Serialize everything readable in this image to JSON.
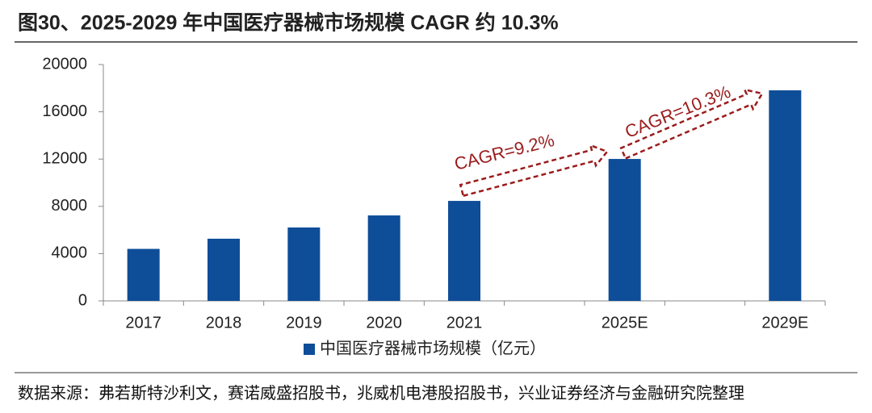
{
  "chart_data": {
    "type": "bar",
    "title": "图30、2025-2029 年中国医疗器械市场规模 CAGR 约 10.3%",
    "categories": [
      "2017",
      "2018",
      "2019",
      "2020",
      "2021",
      null,
      "2025E",
      null,
      "2029E"
    ],
    "series": [
      {
        "name": "中国医疗器械市场规模（亿元）",
        "color": "#0e4d98",
        "values": [
          4400,
          5260,
          6210,
          7230,
          8460,
          null,
          12010,
          null,
          17820
        ]
      }
    ],
    "ylim": [
      0,
      20000
    ],
    "yticks": [
      0,
      4000,
      8000,
      12000,
      16000,
      20000
    ],
    "annotations": [
      {
        "text": "CAGR=9.2%",
        "color": "#9b1c1c"
      },
      {
        "text": "CAGR=10.3%",
        "color": "#9b1c1c"
      }
    ],
    "source": "数据来源：弗若斯特沙利文，赛诺威盛招股书，兆威机电港股招股书，兴业证券经济与金融研究院整理"
  }
}
